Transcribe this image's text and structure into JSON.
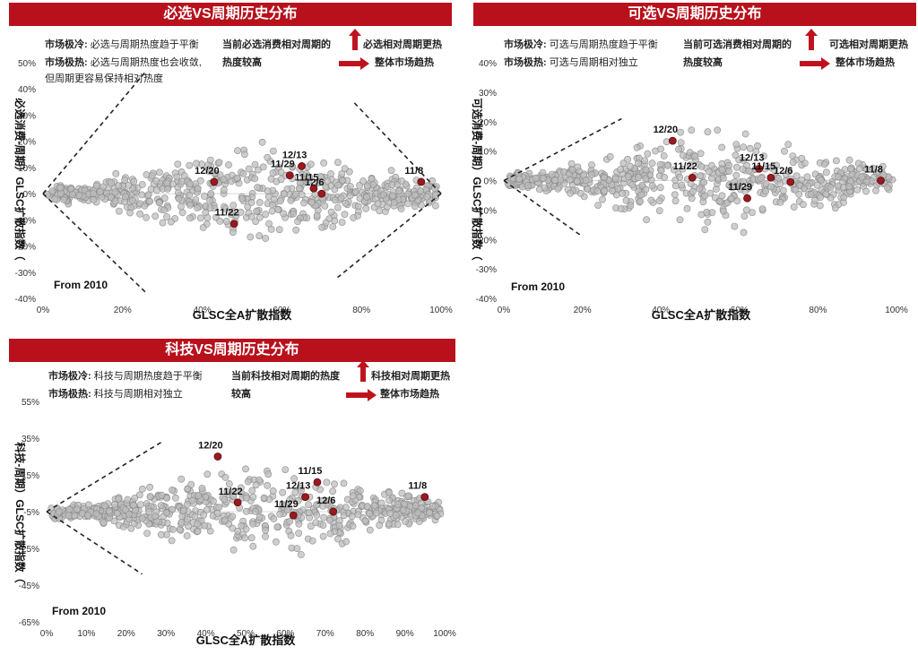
{
  "chart_data": [
    {
      "type": "scatter",
      "title": "必选VS周期历史分布",
      "xlabel": "GLSC全A扩散指数",
      "ylabel": "必选消费-周期）GLSC扩散指数（",
      "xlim": [
        0,
        100
      ],
      "ylim": [
        -40,
        50
      ],
      "x_ticks": [
        "0%",
        "20%",
        "40%",
        "60%",
        "80%",
        "100%"
      ],
      "y_ticks": [
        "-40%",
        "-30%",
        "-20%",
        "-10%",
        "0%",
        "10%",
        "20%",
        "30%",
        "40%",
        "50%"
      ],
      "note_cold_label": "市场极冷:",
      "note_cold_text": "必选与周期热度趋于平衡",
      "note_hot_label": "市场极热:",
      "note_hot_text": "必选与周期热度也会收敛,",
      "note_hot_text2": "但周期更容易保持相对热度",
      "hint_current": "当前必选消费相对周期的",
      "hint_current2": "热度较高",
      "hint_up": "必选相对周期更热",
      "hint_right": "整体市场趋热",
      "from_label": "From 2010",
      "highlight": [
        {
          "label": "12/20",
          "x": 43,
          "y": 4.5
        },
        {
          "label": "11/22",
          "x": 48,
          "y": -11.5
        },
        {
          "label": "11/29",
          "x": 62,
          "y": 7
        },
        {
          "label": "12/13",
          "x": 65,
          "y": 10.5
        },
        {
          "label": "11/15",
          "x": 68,
          "y": 2
        },
        {
          "label": "12/6",
          "x": 70,
          "y": 0
        },
        {
          "label": "11/8",
          "x": 95,
          "y": 4.5
        }
      ],
      "boundary_lines": [
        [
          [
            0,
            0
          ],
          [
            26,
            47
          ]
        ],
        [
          [
            0,
            0
          ],
          [
            26,
            -38
          ]
        ],
        [
          [
            100,
            0
          ],
          [
            78,
            35
          ]
        ],
        [
          [
            100,
            0
          ],
          [
            74,
            -32
          ]
        ]
      ]
    },
    {
      "type": "scatter",
      "title": "可选VS周期历史分布",
      "xlabel": "GLSC全A扩散指数",
      "ylabel": "可选消费-周期）GLSC扩散指数（",
      "xlim": [
        0,
        100
      ],
      "ylim": [
        -40,
        40
      ],
      "x_ticks": [
        "0%",
        "20%",
        "40%",
        "60%",
        "80%",
        "100%"
      ],
      "y_ticks": [
        "-40%",
        "-30%",
        "-20%",
        "-10%",
        "0%",
        "10%",
        "20%",
        "30%",
        "40%"
      ],
      "note_cold_label": "市场极冷:",
      "note_cold_text": "可选与周期热度趋于平衡",
      "note_hot_label": "市场极热:",
      "note_hot_text": "可选与周期相对独立",
      "hint_current": "当前可选消费相对周期的",
      "hint_current2": "热度较高",
      "hint_up": "可选相对周期更热",
      "hint_right": "整体市场趋热",
      "from_label": "From 2010",
      "highlight": [
        {
          "label": "12/20",
          "x": 43,
          "y": 13.5
        },
        {
          "label": "11/22",
          "x": 48,
          "y": 1
        },
        {
          "label": "11/29",
          "x": 62,
          "y": -6
        },
        {
          "label": "12/13",
          "x": 65,
          "y": 4
        },
        {
          "label": "11/15",
          "x": 68,
          "y": 1
        },
        {
          "label": "12/6",
          "x": 73,
          "y": -0.5
        },
        {
          "label": "11/8",
          "x": 96,
          "y": 0
        }
      ],
      "boundary_lines": [
        [
          [
            0,
            0
          ],
          [
            30,
            21
          ]
        ],
        [
          [
            0,
            0
          ],
          [
            20,
            -19
          ]
        ]
      ]
    },
    {
      "type": "scatter",
      "title": "科技VS周期历史分布",
      "xlabel": "GLSC全A扩散指数",
      "ylabel": "科技-周期）GLSC扩散指数（",
      "xlim": [
        0,
        100
      ],
      "ylim": [
        -65,
        55
      ],
      "x_ticks": [
        "0%",
        "10%",
        "20%",
        "30%",
        "40%",
        "50%",
        "60%",
        "70%",
        "80%",
        "90%",
        "100%"
      ],
      "y_ticks": [
        "-65%",
        "-45%",
        "-25%",
        "-5%",
        "15%",
        "35%",
        "55%"
      ],
      "note_cold_label": "市场极冷:",
      "note_cold_text": "科技与周期热度趋于平衡",
      "note_hot_label": "市场极热:",
      "note_hot_text": "科技与周期相对独立",
      "hint_current": "当前科技相对周期的热度",
      "hint_current2": "较高",
      "hint_up": "科技相对周期更热",
      "hint_right": "整体市场趋热",
      "from_label": "From 2010",
      "highlight": [
        {
          "label": "12/20",
          "x": 43,
          "y": 25
        },
        {
          "label": "11/22",
          "x": 48,
          "y": 0
        },
        {
          "label": "12/13",
          "x": 65,
          "y": 3
        },
        {
          "label": "11/29",
          "x": 62,
          "y": -7
        },
        {
          "label": "11/15",
          "x": 68,
          "y": 11
        },
        {
          "label": "12/6",
          "x": 72,
          "y": -5
        },
        {
          "label": "11/8",
          "x": 95,
          "y": 3
        }
      ],
      "boundary_lines": [
        [
          [
            0,
            -5
          ],
          [
            29,
            33
          ]
        ],
        [
          [
            0,
            -5
          ],
          [
            24,
            -39
          ]
        ]
      ]
    }
  ],
  "colors": {
    "banner": "#b8111c",
    "highlight": "#9a1a1f",
    "scatter_fill": "#bdbdbd",
    "scatter_stroke": "#888888",
    "arrow": "#c0121e"
  }
}
